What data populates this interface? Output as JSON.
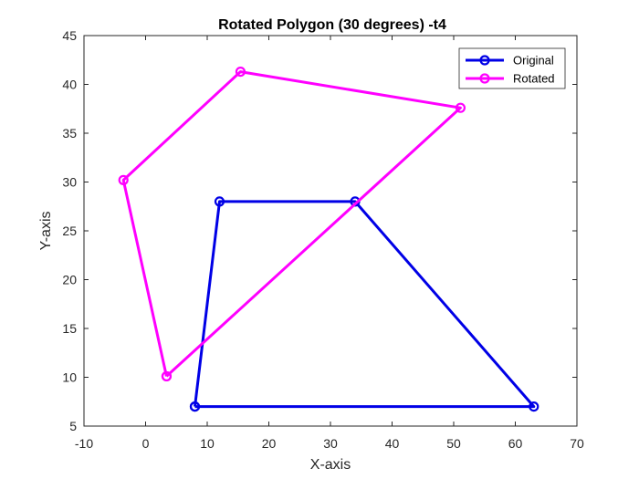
{
  "chart_data": {
    "type": "line",
    "title": "Rotated Polygon (30 degrees) -t4",
    "xlabel": "X-axis",
    "ylabel": "Y-axis",
    "xlim": [
      -10,
      70
    ],
    "ylim": [
      5,
      45
    ],
    "xticks": [
      -10,
      0,
      10,
      20,
      30,
      40,
      50,
      60,
      70
    ],
    "yticks": [
      5,
      10,
      15,
      20,
      25,
      30,
      35,
      40,
      45
    ],
    "grid": false,
    "legend_position": "top-right",
    "series": [
      {
        "name": "Original",
        "color": "#0000e6",
        "marker": "circle",
        "x": [
          8,
          63,
          34,
          12,
          8
        ],
        "y": [
          7,
          7,
          28,
          28,
          7
        ]
      },
      {
        "name": "Rotated",
        "color": "#ff00ff",
        "marker": "circle",
        "x": [
          3.4,
          51.1,
          15.4,
          -3.6,
          3.4
        ],
        "y": [
          10.1,
          37.6,
          41.3,
          30.2,
          10.1
        ]
      }
    ]
  }
}
